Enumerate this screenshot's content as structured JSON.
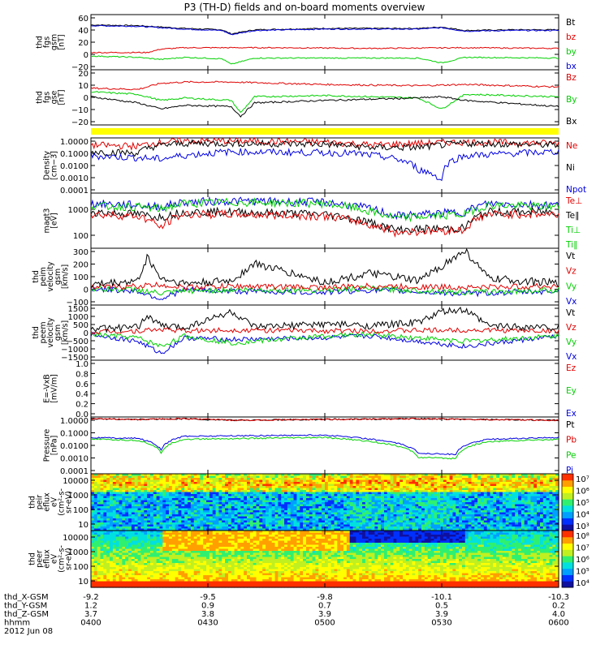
{
  "title": "P3 (TH-D) fields and on-board moments overview",
  "colors": {
    "black": "#000000",
    "red": "#e00000",
    "green": "#00d000",
    "blue": "#0000e0",
    "yellow": "#ffff00"
  },
  "footer": {
    "rows": [
      {
        "label": "thd_X-GSM",
        "values": [
          "-9.2",
          "-9.5",
          "-9.8",
          "-10.1",
          "-10.3"
        ]
      },
      {
        "label": "thd_Y-GSM",
        "values": [
          "1.2",
          "0.9",
          "0.7",
          "0.5",
          "0.2"
        ]
      },
      {
        "label": "thd_Z-GSM",
        "values": [
          "3.7",
          "3.8",
          "3.9",
          "3.9",
          "4.0"
        ]
      },
      {
        "label": "hhmm",
        "values": [
          "0400",
          "0430",
          "0500",
          "0530",
          "0600"
        ]
      }
    ],
    "date": "2012 Jun 08"
  },
  "chart_data": [
    {
      "type": "line",
      "id": "fgs-gsm-lower",
      "ylabel": [
        "thd",
        "fgs",
        "gsm",
        "[nT]"
      ],
      "ylim": [
        -20,
        60
      ],
      "ticks": [
        "60",
        "40",
        "20",
        "0",
        "−20"
      ],
      "legend": [
        "Bt",
        "bz",
        "by",
        "bx"
      ],
      "series": [
        {
          "name": "Bt",
          "color": "black",
          "x": [
            0,
            0.1,
            0.15,
            0.2,
            0.28,
            0.3,
            0.35,
            0.5,
            0.7,
            0.75,
            0.8,
            0.9,
            1
          ],
          "y": [
            45,
            44,
            42,
            40,
            38,
            32,
            38,
            40,
            40,
            42,
            37,
            38,
            38
          ]
        },
        {
          "name": "bx",
          "color": "blue",
          "x": [
            0,
            0.1,
            0.15,
            0.2,
            0.28,
            0.3,
            0.35,
            0.5,
            0.7,
            0.75,
            0.8,
            0.9,
            1
          ],
          "y": [
            44,
            43,
            41,
            39,
            37,
            31,
            37,
            39,
            39,
            41,
            36,
            37,
            37
          ]
        },
        {
          "name": "bz",
          "color": "red",
          "x": [
            0,
            0.12,
            0.15,
            0.2,
            0.4,
            0.6,
            0.8,
            1
          ],
          "y": [
            5,
            5,
            10,
            12,
            12,
            11,
            12,
            11
          ]
        },
        {
          "name": "by",
          "color": "green",
          "x": [
            0,
            0.1,
            0.15,
            0.2,
            0.28,
            0.3,
            0.35,
            0.5,
            0.7,
            0.75,
            0.8,
            1
          ],
          "y": [
            0,
            -2,
            -5,
            -2,
            -4,
            -12,
            -3,
            -3,
            -3,
            -10,
            -2,
            -3
          ]
        }
      ]
    },
    {
      "type": "line",
      "id": "fgs-gse",
      "ylabel": [
        "thd",
        "fgs",
        "gse",
        "[nT]"
      ],
      "ylim": [
        -25,
        20
      ],
      "ticks": [
        "20",
        "10",
        "0",
        "−10",
        "−20"
      ],
      "legend": [
        "Bz",
        "By",
        "Bx"
      ],
      "series": [
        {
          "name": "Bz",
          "color": "red",
          "x": [
            0,
            0.1,
            0.15,
            0.2,
            0.3,
            0.5,
            0.7,
            0.8,
            0.9,
            1
          ],
          "y": [
            5,
            4,
            9,
            10,
            10,
            8,
            7,
            8,
            7,
            6
          ]
        },
        {
          "name": "By",
          "color": "green",
          "x": [
            0,
            0.1,
            0.15,
            0.2,
            0.3,
            0.32,
            0.35,
            0.5,
            0.7,
            0.75,
            0.8,
            1
          ],
          "y": [
            2,
            0,
            -5,
            -3,
            -5,
            -15,
            -2,
            -1,
            -3,
            -12,
            0,
            -2
          ]
        },
        {
          "name": "Bx",
          "color": "black",
          "x": [
            0,
            0.1,
            0.15,
            0.2,
            0.3,
            0.32,
            0.35,
            0.5,
            0.7,
            0.75,
            0.8,
            1
          ],
          "y": [
            -2,
            -7,
            -12,
            -9,
            -10,
            -18,
            -7,
            -5,
            -3,
            -2,
            -5,
            -10
          ]
        }
      ]
    },
    {
      "type": "bar",
      "id": "mode-bar",
      "color": "yellow"
    },
    {
      "type": "line",
      "id": "density",
      "ylabel": [
        "Density",
        "[cm−3]"
      ],
      "ylog": true,
      "ylim": [
        0.0001,
        1
      ],
      "ticks": [
        "1.0000",
        "0.1000",
        "0.0100",
        "0.0010",
        "0.0001"
      ],
      "legend": [
        "Ne",
        "Ni",
        "Npot"
      ],
      "series": [
        {
          "name": "Ne",
          "color": "red",
          "x": [
            0,
            0.1,
            0.15,
            0.2,
            0.3,
            0.5,
            0.6,
            0.7,
            0.8,
            1
          ],
          "y": [
            0.3,
            0.25,
            0.5,
            0.6,
            0.6,
            0.5,
            0.3,
            0.4,
            0.5,
            0.4
          ]
        },
        {
          "name": "Ni",
          "color": "black",
          "x": [
            0,
            0.1,
            0.15,
            0.2,
            0.3,
            0.5,
            0.6,
            0.7,
            0.8,
            1
          ],
          "y": [
            0.1,
            0.08,
            0.3,
            0.4,
            0.4,
            0.35,
            0.2,
            0.2,
            0.4,
            0.3
          ]
        },
        {
          "name": "Npot",
          "color": "blue",
          "x": [
            0,
            0.15,
            0.3,
            0.55,
            0.7,
            0.75,
            0.8,
            1
          ],
          "y": [
            0.05,
            0.03,
            0.1,
            0.08,
            0.005,
            0.0007,
            0.05,
            0.1
          ]
        }
      ]
    },
    {
      "type": "line",
      "id": "temperature",
      "ylabel": [
        "magt3",
        "[eV]"
      ],
      "ylog": true,
      "ylim": [
        40,
        10000
      ],
      "ticks": [
        "1000",
        "100"
      ],
      "legend": [
        "Te⊥",
        "Te∥",
        "Ti⊥",
        "Ti∥"
      ],
      "series": [
        {
          "name": "Ti⊥",
          "color": "blue",
          "x": [
            0,
            0.1,
            0.15,
            0.2,
            0.3,
            0.5,
            0.6,
            0.65,
            0.8,
            0.85,
            1
          ],
          "y": [
            3500,
            3000,
            2500,
            4000,
            4500,
            4000,
            2000,
            1000,
            1500,
            3500,
            3000
          ]
        },
        {
          "name": "Ti∥",
          "color": "green",
          "x": [
            0,
            0.1,
            0.15,
            0.2,
            0.3,
            0.5,
            0.6,
            0.65,
            0.8,
            0.85,
            1
          ],
          "y": [
            2800,
            2500,
            2000,
            3500,
            4000,
            3500,
            1500,
            800,
            1200,
            3000,
            2500
          ]
        },
        {
          "name": "Te∥",
          "color": "black",
          "x": [
            0,
            0.1,
            0.15,
            0.2,
            0.3,
            0.5,
            0.6,
            0.65,
            0.8,
            0.85,
            1
          ],
          "y": [
            1500,
            1200,
            900,
            1500,
            1500,
            1200,
            500,
            250,
            300,
            1500,
            1500
          ]
        },
        {
          "name": "Te⊥",
          "color": "red",
          "x": [
            0,
            0.1,
            0.15,
            0.2,
            0.3,
            0.5,
            0.6,
            0.65,
            0.8,
            0.85,
            1
          ],
          "y": [
            1200,
            1000,
            300,
            1200,
            1200,
            1000,
            400,
            200,
            250,
            1200,
            1200
          ]
        }
      ]
    },
    {
      "type": "line",
      "id": "peim-velocity",
      "ylabel": [
        "thd",
        "peim",
        "velocity",
        "gsm",
        "[km/s]"
      ],
      "ylim": [
        -130,
        320
      ],
      "ticks": [
        "300",
        "200",
        "100",
        "0",
        "−100"
      ],
      "legend": [
        "Vt",
        "Vz",
        "Vy",
        "Vx"
      ],
      "series": [
        {
          "name": "Vx",
          "color": "blue",
          "x": [
            0,
            0.1,
            0.15,
            0.2,
            0.3,
            0.5,
            0.6,
            0.8,
            1
          ],
          "y": [
            0,
            -20,
            -80,
            -10,
            -20,
            -30,
            -10,
            -40,
            -20
          ]
        },
        {
          "name": "Vy",
          "color": "green",
          "x": [
            0,
            0.1,
            0.15,
            0.2,
            0.3,
            0.5,
            0.6,
            0.8,
            1
          ],
          "y": [
            0,
            -10,
            -40,
            -20,
            -10,
            -10,
            0,
            -30,
            -10
          ]
        },
        {
          "name": "Vz",
          "color": "red",
          "x": [
            0,
            0.1,
            0.15,
            0.2,
            0.3,
            0.5,
            0.6,
            0.8,
            1
          ],
          "y": [
            10,
            20,
            30,
            10,
            20,
            10,
            20,
            10,
            20
          ]
        },
        {
          "name": "Vt",
          "color": "black",
          "x": [
            0,
            0.1,
            0.12,
            0.15,
            0.2,
            0.3,
            0.35,
            0.5,
            0.6,
            0.7,
            0.8,
            0.85,
            1
          ],
          "y": [
            30,
            60,
            250,
            80,
            40,
            60,
            200,
            50,
            120,
            60,
            300,
            80,
            40
          ]
        }
      ]
    },
    {
      "type": "line",
      "id": "peem-velocity",
      "ylabel": [
        "thd",
        "peem",
        "velocity",
        "gsm",
        "[km/s]"
      ],
      "ylim": [
        -1600,
        1600
      ],
      "ticks": [
        "1500",
        "1000",
        "500",
        "0",
        "−500",
        "−1000",
        "−1500"
      ],
      "legend": [
        "Vt",
        "Vz",
        "Vy",
        "Vx"
      ],
      "series": [
        {
          "name": "Vx",
          "color": "blue",
          "x": [
            0,
            0.1,
            0.15,
            0.2,
            0.3,
            0.5,
            0.6,
            0.8,
            1
          ],
          "y": [
            -100,
            -500,
            -1200,
            -300,
            -400,
            -300,
            -200,
            -800,
            -200
          ]
        },
        {
          "name": "Vy",
          "color": "green",
          "x": [
            0,
            0.1,
            0.15,
            0.2,
            0.3,
            0.5,
            0.6,
            0.8,
            1
          ],
          "y": [
            -100,
            -300,
            -800,
            -200,
            -600,
            -200,
            -100,
            -500,
            -200
          ]
        },
        {
          "name": "Vz",
          "color": "red",
          "x": [
            0,
            0.1,
            0.15,
            0.2,
            0.3,
            0.5,
            0.6,
            0.8,
            1
          ],
          "y": [
            50,
            100,
            200,
            100,
            150,
            100,
            100,
            150,
            100
          ]
        },
        {
          "name": "Vt",
          "color": "black",
          "x": [
            0,
            0.1,
            0.12,
            0.15,
            0.2,
            0.3,
            0.35,
            0.5,
            0.6,
            0.7,
            0.75,
            0.8,
            0.85,
            1
          ],
          "y": [
            200,
            300,
            1000,
            400,
            300,
            1200,
            300,
            500,
            400,
            600,
            1200,
            1300,
            400,
            300
          ]
        }
      ]
    },
    {
      "type": "line",
      "id": "efield",
      "ylabel": [
        "E=-VxB",
        "[mV/m]"
      ],
      "ylim": [
        0,
        1
      ],
      "ticks": [
        "1.0",
        "0.8",
        "0.6",
        "0.4",
        "0.2",
        "0.0"
      ],
      "legend": [
        "Ez",
        "Ey",
        "Ex"
      ],
      "series": []
    },
    {
      "type": "line",
      "id": "pressure",
      "ylabel": [
        "Pressure",
        "[nPa]"
      ],
      "ylog": true,
      "ylim": [
        0.0001,
        1.2
      ],
      "ticks": [
        "1.0000",
        "0.1000",
        "0.0100",
        "0.0010",
        "0.0001"
      ],
      "legend": [
        "Pt",
        "Pb",
        "Pe",
        "Pi"
      ],
      "series": [
        {
          "name": "Pt",
          "color": "black",
          "x": [
            0,
            0.1,
            0.2,
            0.3,
            0.5,
            0.7,
            0.8,
            1
          ],
          "y": [
            0.9,
            0.8,
            0.9,
            0.7,
            0.8,
            0.9,
            0.8,
            0.7
          ]
        },
        {
          "name": "Pb",
          "color": "red",
          "x": [
            0,
            0.1,
            0.2,
            0.3,
            0.5,
            0.7,
            0.8,
            1
          ],
          "y": [
            0.9,
            0.8,
            0.9,
            0.7,
            0.8,
            0.9,
            0.8,
            0.7
          ]
        },
        {
          "name": "Pi",
          "color": "blue",
          "x": [
            0,
            0.1,
            0.15,
            0.2,
            0.5,
            0.6,
            0.7,
            0.78,
            0.85,
            1
          ],
          "y": [
            0.04,
            0.035,
            0.005,
            0.05,
            0.06,
            0.03,
            0.003,
            0.0025,
            0.03,
            0.04
          ]
        },
        {
          "name": "Pe",
          "color": "green",
          "x": [
            0,
            0.1,
            0.15,
            0.2,
            0.5,
            0.6,
            0.7,
            0.78,
            0.85,
            1
          ],
          "y": [
            0.03,
            0.025,
            0.003,
            0.03,
            0.04,
            0.02,
            0.0015,
            0.0012,
            0.02,
            0.03
          ]
        }
      ]
    },
    {
      "type": "heatmap",
      "id": "peir-spec",
      "ylabel": [
        "thd",
        "peir",
        "eflux",
        "eV",
        "(cm²-s-",
        "sr-eV)"
      ],
      "ticks": [
        "10000",
        "1000",
        "100",
        "10"
      ],
      "colorbar": {
        "ticks": [
          "10⁷",
          "10⁶",
          "10⁵",
          "10⁴",
          "10³"
        ]
      }
    },
    {
      "type": "heatmap",
      "id": "peer-spec",
      "ylabel": [
        "thd",
        "peer",
        "eflux",
        "eV",
        "(cm²-s-",
        "sr-eV)"
      ],
      "ticks": [
        "10000",
        "1000",
        "100",
        "10"
      ],
      "colorbar": {
        "ticks": [
          "10⁸",
          "10⁷",
          "10⁶",
          "10⁵",
          "10⁴"
        ]
      }
    }
  ]
}
